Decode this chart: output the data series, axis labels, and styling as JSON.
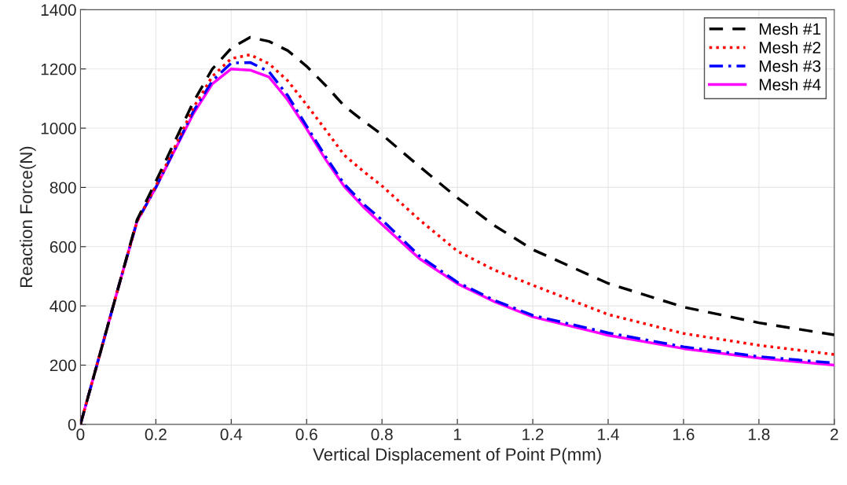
{
  "chart_data": {
    "type": "line",
    "xlabel": "Vertical Displacement of Point P(mm)",
    "ylabel": "Reaction Force(N)",
    "xlim": [
      0,
      2
    ],
    "ylim": [
      0,
      1400
    ],
    "xticks": [
      0,
      0.2,
      0.4,
      0.6,
      0.8,
      1,
      1.2,
      1.4,
      1.6,
      1.8,
      2
    ],
    "yticks": [
      0,
      200,
      400,
      600,
      800,
      1000,
      1200,
      1400
    ],
    "grid": true,
    "legend": "top right",
    "marker": "none",
    "x": [
      0,
      0.05,
      0.1,
      0.15,
      0.2,
      0.25,
      0.3,
      0.35,
      0.4,
      0.45,
      0.5,
      0.55,
      0.6,
      0.65,
      0.7,
      0.75,
      0.8,
      0.9,
      1.0,
      1.1,
      1.2,
      1.4,
      1.6,
      1.8,
      2.0
    ],
    "series": [
      {
        "name": "Mesh #1",
        "color": "#000000",
        "line_style": "dashed",
        "values": [
          0,
          230,
          460,
          690,
          820,
          955,
          1090,
          1200,
          1270,
          1307,
          1293,
          1262,
          1209,
          1145,
          1075,
          1025,
          978,
          870,
          765,
          670,
          590,
          476,
          396,
          343,
          302
        ]
      },
      {
        "name": "Mesh #2",
        "color": "#ff0000",
        "line_style": "dotted",
        "values": [
          0,
          230,
          460,
          685,
          805,
          935,
          1070,
          1175,
          1235,
          1248,
          1218,
          1160,
          1079,
          995,
          909,
          855,
          805,
          690,
          585,
          520,
          470,
          371,
          307,
          267,
          236
        ]
      },
      {
        "name": "Mesh #3",
        "color": "#0000ff",
        "line_style": "dashdot",
        "values": [
          0,
          230,
          460,
          685,
          800,
          928,
          1058,
          1160,
          1220,
          1222,
          1191,
          1110,
          1007,
          905,
          811,
          745,
          690,
          568,
          480,
          418,
          368,
          309,
          262,
          229,
          207
        ]
      },
      {
        "name": "Mesh #4",
        "color": "#ff00ff",
        "line_style": "solid",
        "values": [
          0,
          230,
          460,
          685,
          800,
          925,
          1050,
          1150,
          1200,
          1196,
          1173,
          1095,
          998,
          895,
          803,
          735,
          675,
          559,
          475,
          413,
          363,
          301,
          256,
          224,
          200
        ]
      }
    ]
  }
}
